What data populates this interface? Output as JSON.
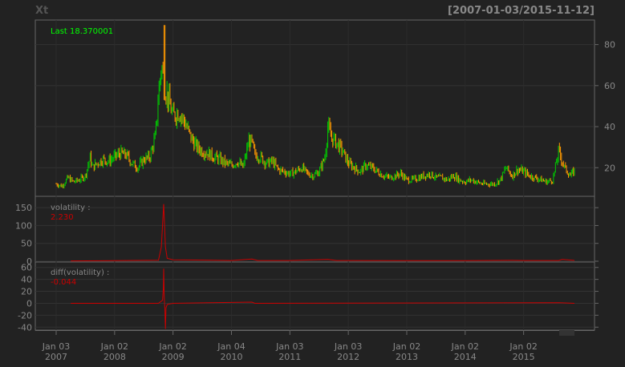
{
  "header": {
    "symbol": "Xt",
    "date_range": "[2007-01-03/2015-11-12]"
  },
  "colors": {
    "background": "#222222",
    "panel_border": "#666666",
    "grid": "#333333",
    "axis_text": "#888888",
    "last_label": "#00FF00",
    "candle_up": "#00CC00",
    "candle_down": "#FF9900",
    "indicator": "#CC0000"
  },
  "chart_data": [
    {
      "type": "candlestick",
      "panel": "price",
      "legend": "Last 18.370001",
      "last_value": 18.370001,
      "ylim": [
        8,
        90
      ],
      "yticks": [
        20,
        40,
        60,
        80
      ],
      "x_range": [
        "2007-01-03",
        "2015-11-12"
      ],
      "xticks": [
        {
          "label": "Jan 03",
          "year": "2007"
        },
        {
          "label": "Jan 02",
          "year": "2008"
        },
        {
          "label": "Jan 02",
          "year": "2009"
        },
        {
          "label": "Jan 04",
          "year": "2010"
        },
        {
          "label": "Jan 03",
          "year": "2011"
        },
        {
          "label": "Jan 03",
          "year": "2012"
        },
        {
          "label": "Jan 02",
          "year": "2013"
        },
        {
          "label": "Jan 02",
          "year": "2014"
        },
        {
          "label": "Jan 02",
          "year": "2015"
        }
      ],
      "close_series": {
        "x": [
          2007.0,
          2007.1,
          2007.2,
          2007.3,
          2007.4,
          2007.5,
          2007.58,
          2007.62,
          2007.7,
          2007.8,
          2007.9,
          2008.0,
          2008.1,
          2008.2,
          2008.3,
          2008.4,
          2008.5,
          2008.6,
          2008.7,
          2008.75,
          2008.8,
          2008.85,
          2008.9,
          2009.0,
          2009.1,
          2009.2,
          2009.3,
          2009.4,
          2009.5,
          2009.6,
          2009.7,
          2009.8,
          2009.9,
          2010.0,
          2010.1,
          2010.2,
          2010.3,
          2010.35,
          2010.4,
          2010.5,
          2010.6,
          2010.7,
          2010.8,
          2010.9,
          2011.0,
          2011.1,
          2011.2,
          2011.3,
          2011.4,
          2011.5,
          2011.6,
          2011.65,
          2011.7,
          2011.8,
          2011.9,
          2012.0,
          2012.1,
          2012.2,
          2012.3,
          2012.4,
          2012.5,
          2012.6,
          2012.7,
          2012.8,
          2012.9,
          2013.0,
          2013.1,
          2013.2,
          2013.3,
          2013.4,
          2013.5,
          2013.6,
          2013.7,
          2013.8,
          2013.9,
          2014.0,
          2014.1,
          2014.2,
          2014.3,
          2014.4,
          2014.5,
          2014.6,
          2014.7,
          2014.8,
          2014.9,
          2015.0,
          2015.1,
          2015.2,
          2015.3,
          2015.4,
          2015.5,
          2015.6,
          2015.65,
          2015.7,
          2015.8,
          2015.87
        ],
        "values": [
          12,
          11,
          15,
          13,
          14,
          16,
          25,
          20,
          22,
          24,
          23,
          25,
          27,
          26,
          22,
          20,
          24,
          25,
          35,
          55,
          70,
          60,
          55,
          45,
          47,
          42,
          35,
          30,
          28,
          27,
          25,
          24,
          22,
          21,
          23,
          20,
          33,
          32,
          26,
          25,
          22,
          23,
          19,
          18,
          17,
          18,
          20,
          17,
          16,
          18,
          25,
          40,
          35,
          32,
          28,
          22,
          20,
          18,
          21,
          20,
          18,
          16,
          15,
          16,
          17,
          14,
          14,
          15,
          16,
          17,
          15,
          15,
          14,
          16,
          14,
          13,
          14,
          13,
          12,
          12,
          12,
          14,
          20,
          16,
          19,
          18,
          16,
          15,
          14,
          13,
          14,
          28,
          24,
          20,
          16,
          18.37
        ]
      },
      "max_high": 89.5
    },
    {
      "type": "line",
      "panel": "volatility",
      "legend": "volatility :",
      "last_value": "2.230",
      "ylim": [
        0,
        175
      ],
      "yticks": [
        0,
        50,
        100,
        150
      ],
      "x": [
        2007.25,
        2008.0,
        2008.75,
        2008.8,
        2008.84,
        2008.87,
        2008.9,
        2009.0,
        2010.0,
        2010.35,
        2010.45,
        2011.0,
        2011.65,
        2011.8,
        2012.0,
        2013.0,
        2014.0,
        2014.8,
        2015.0,
        2015.6,
        2015.66,
        2015.87
      ],
      "values": [
        1,
        1.5,
        3,
        40,
        160,
        40,
        8,
        4,
        2,
        6,
        2,
        2,
        5,
        2,
        2,
        1.5,
        1.5,
        2.5,
        2,
        2,
        5,
        2.23
      ]
    },
    {
      "type": "line",
      "panel": "diff_volatility",
      "legend": "diff(volatility) :",
      "last_value": "-0.044",
      "ylim": [
        -45,
        65
      ],
      "yticks": [
        -40,
        -20,
        0,
        20,
        40,
        60
      ],
      "x": [
        2007.25,
        2008.75,
        2008.82,
        2008.835,
        2008.84,
        2008.85,
        2008.86,
        2008.87,
        2008.88,
        2008.9,
        2009.0,
        2010.35,
        2010.4,
        2015.6,
        2015.87
      ],
      "values": [
        0,
        0,
        5,
        25,
        58,
        10,
        -10,
        -43,
        -8,
        -2,
        0,
        2,
        0,
        1,
        -0.044
      ]
    }
  ]
}
